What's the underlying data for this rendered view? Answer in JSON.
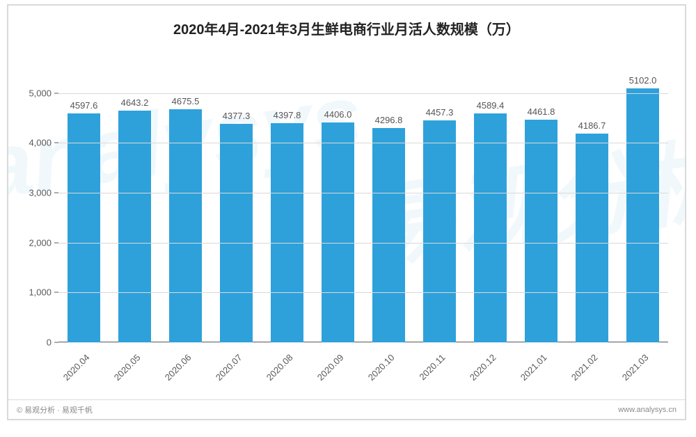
{
  "chart": {
    "type": "bar",
    "title": "2020年4月-2021年3月生鲜电商行业月活人数规模（万）",
    "title_fontsize": 20,
    "title_color": "#222222",
    "categories": [
      "2020.04",
      "2020.05",
      "2020.06",
      "2020.07",
      "2020.08",
      "2020.09",
      "2020.10",
      "2020.11",
      "2020.12",
      "2021.01",
      "2021.02",
      "2021.03"
    ],
    "values": [
      4597.6,
      4643.2,
      4675.5,
      4377.3,
      4397.8,
      4406.0,
      4296.8,
      4457.3,
      4589.4,
      4461.8,
      4186.7,
      5102.0
    ],
    "value_labels": [
      "4597.6",
      "4643.2",
      "4675.5",
      "4377.3",
      "4397.8",
      "4406.0",
      "4296.8",
      "4457.3",
      "4589.4",
      "4461.8",
      "4186.7",
      "5102.0"
    ],
    "bar_color": "#2ea1db",
    "ylim": [
      0,
      5500
    ],
    "yticks": [
      0,
      1000,
      2000,
      3000,
      4000,
      5000
    ],
    "ytick_labels": [
      "0",
      "1,000",
      "2,000",
      "3,000",
      "4,000",
      "5,000"
    ],
    "grid_color": "#d9d9d9",
    "axis_color": "#595959",
    "background_color": "#ffffff",
    "value_label_fontsize": 13,
    "tick_label_fontsize": 13,
    "x_label_rotation_deg": -45,
    "bar_width_ratio": 0.64
  },
  "watermark": {
    "text_en": "analysys",
    "text_cn": "易观分析",
    "color": "rgba(52,152,219,0.07)"
  },
  "footer": {
    "left": "© 易观分析 · 易观千帆",
    "right": "www.analysys.cn"
  }
}
